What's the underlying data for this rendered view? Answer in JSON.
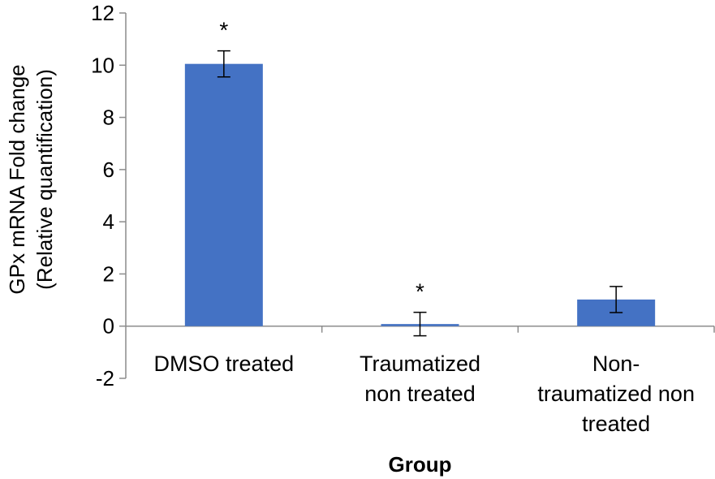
{
  "chart_data": {
    "type": "bar",
    "title": "",
    "xlabel": "Group",
    "ylabel_lines": [
      "GPx mRNA Fold change",
      "(Relative quantification)"
    ],
    "ylim": [
      -2,
      12
    ],
    "yticks": [
      12,
      10,
      8,
      6,
      4,
      2,
      0,
      -2
    ],
    "grid": false,
    "bar_color": "#4472C4",
    "categories": [
      {
        "lines": [
          "DMSO treated"
        ]
      },
      {
        "lines": [
          "Traumatized",
          "non treated"
        ]
      },
      {
        "lines": [
          "Non-",
          "traumatized non",
          "treated"
        ]
      }
    ],
    "values": [
      10.05,
      0.08,
      1.02
    ],
    "errors": [
      0.5,
      0.45,
      0.5
    ],
    "significance": [
      "*",
      "*",
      ""
    ]
  }
}
